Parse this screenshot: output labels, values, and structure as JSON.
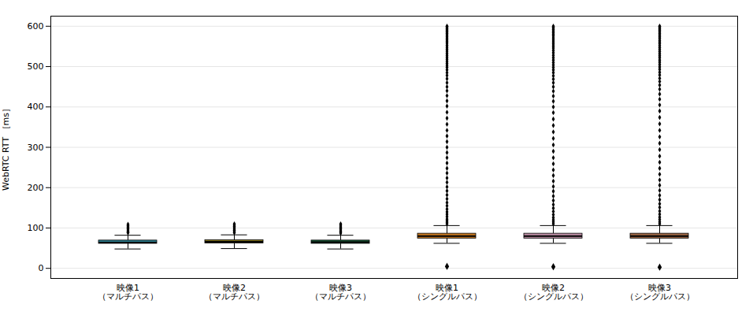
{
  "chart_data": {
    "type": "box",
    "categories": [
      "映像1\n（マルチパス）",
      "映像2\n（マルチパス）",
      "映像3\n（マルチパス）",
      "映像1\n（シングルパス）",
      "映像2\n（シングルパス）",
      "映像3\n（シングルパス）"
    ],
    "ylabel": "WebRTC RTT ［ms］",
    "ylim": [
      -25,
      625
    ],
    "yticks": [
      0,
      100,
      200,
      300,
      400,
      500,
      600
    ],
    "grid": true,
    "colors": [
      "#2b7b8c",
      "#847520",
      "#1a5c38",
      "#c87820",
      "#c090a8",
      "#a06845"
    ],
    "boxes": [
      {
        "q1": 61,
        "median": 64,
        "q3": 69,
        "whislo": 48,
        "whishi": 82,
        "fliers_high": [
          88,
          90,
          93,
          97,
          100,
          103,
          106,
          109
        ],
        "fliers_low": []
      },
      {
        "q1": 62,
        "median": 66,
        "q3": 70,
        "whislo": 49,
        "whishi": 83,
        "fliers_high": [
          88,
          91,
          94,
          97,
          101,
          104,
          107,
          110
        ],
        "fliers_low": []
      },
      {
        "q1": 61,
        "median": 65,
        "q3": 69,
        "whislo": 48,
        "whishi": 82,
        "fliers_high": [
          87,
          90,
          93,
          97,
          100,
          103,
          107,
          110
        ],
        "fliers_low": []
      },
      {
        "q1": 74,
        "median": 80,
        "q3": 86,
        "whislo": 62,
        "whishi": 106,
        "fliers_high": [
          110,
          114,
          118,
          122,
          128,
          134,
          140,
          147,
          155,
          163,
          172,
          182,
          192,
          202,
          213,
          224,
          236,
          248,
          261,
          274,
          287,
          300,
          314,
          328,
          342,
          357,
          372,
          387,
          402,
          415,
          428,
          440,
          450,
          460,
          470,
          478,
          485,
          492,
          498,
          503,
          508,
          513,
          518,
          523,
          528,
          533,
          538,
          543,
          548,
          553,
          558,
          562,
          566,
          570,
          574,
          578,
          582,
          585,
          588,
          591,
          594,
          597,
          599,
          600
        ],
        "fliers_low": [
          5
        ]
      },
      {
        "q1": 74,
        "median": 80,
        "q3": 86,
        "whislo": 62,
        "whishi": 106,
        "fliers_high": [
          110,
          115,
          120,
          126,
          133,
          141,
          149,
          158,
          168,
          179,
          191,
          203,
          216,
          230,
          244,
          259,
          274,
          290,
          306,
          322,
          338,
          354,
          370,
          386,
          400,
          414,
          427,
          439,
          450,
          460,
          469,
          477,
          485,
          492,
          498,
          504,
          510,
          516,
          522,
          528,
          534,
          540,
          546,
          551,
          556,
          561,
          566,
          571,
          576,
          580,
          584,
          588,
          592,
          595,
          598,
          600
        ],
        "fliers_low": [
          4
        ]
      },
      {
        "q1": 74,
        "median": 80,
        "q3": 86,
        "whislo": 62,
        "whishi": 106,
        "fliers_high": [
          110,
          115,
          121,
          127,
          134,
          142,
          151,
          160,
          170,
          181,
          193,
          206,
          219,
          233,
          248,
          263,
          278,
          294,
          310,
          326,
          342,
          358,
          374,
          390,
          405,
          419,
          432,
          444,
          454,
          463,
          471,
          479,
          486,
          493,
          499,
          505,
          511,
          516,
          522,
          527,
          532,
          537,
          542,
          547,
          552,
          557,
          561,
          565,
          570,
          574,
          578,
          582,
          586,
          590,
          593,
          596,
          599,
          600
        ],
        "fliers_low": [
          3
        ]
      }
    ]
  }
}
